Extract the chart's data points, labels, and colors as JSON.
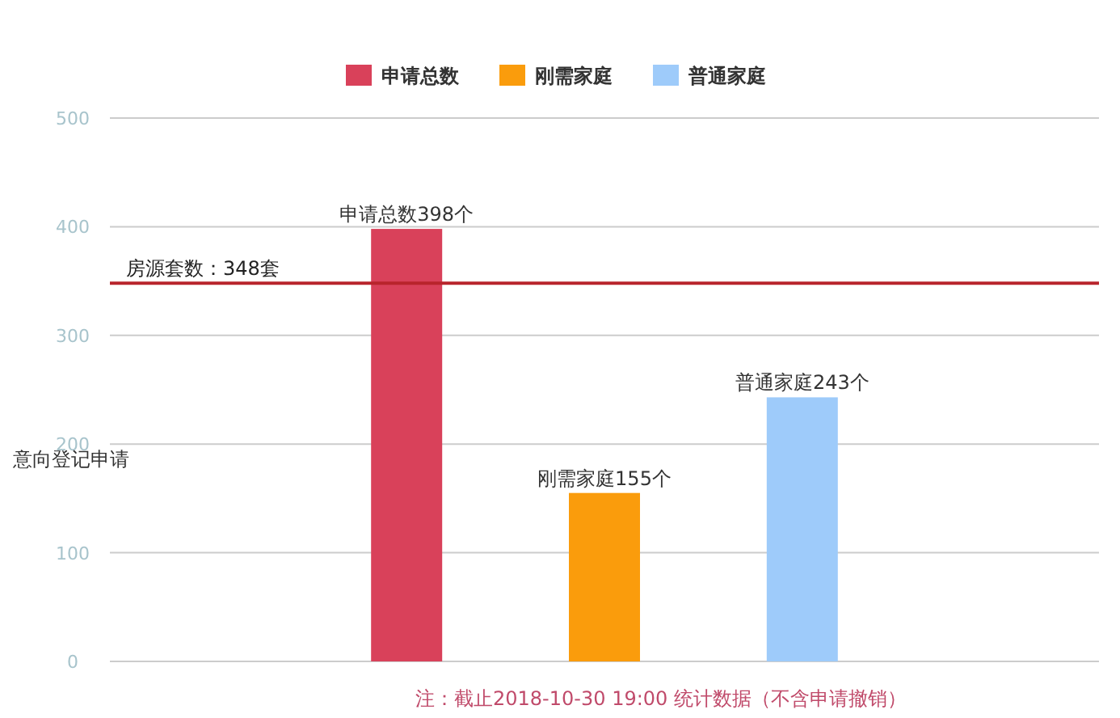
{
  "chart_data": {
    "type": "bar",
    "ylabel": "意向登记申请",
    "categories": [
      null,
      null,
      null,
      null,
      null
    ],
    "series": [
      {
        "name": "申请总数",
        "color": "#d9415a",
        "values": [
          null,
          398,
          null,
          null,
          null
        ],
        "value_labels": [
          null,
          "申请总数398个",
          null,
          null,
          null
        ]
      },
      {
        "name": "刚需家庭",
        "color": "#fa9c0c",
        "values": [
          null,
          null,
          155,
          null,
          null
        ],
        "value_labels": [
          null,
          null,
          "刚需家庭155个",
          null,
          null
        ]
      },
      {
        "name": "普通家庭",
        "color": "#9ecbfa",
        "values": [
          null,
          null,
          null,
          243,
          null
        ],
        "value_labels": [
          null,
          null,
          null,
          "普通家庭243个",
          null
        ]
      }
    ],
    "ylim": [
      0,
      500
    ],
    "yticks": [
      0,
      100,
      200,
      300,
      400,
      500
    ],
    "grid": "y",
    "legend": "top",
    "ref_lines": [
      {
        "axis": "y",
        "value": 348,
        "label": "房源套数：348套",
        "color": "#b8242c"
      }
    ],
    "annotations": [
      "注：截止2018-10-30 19:00 统计数据（不含申请撤销）"
    ]
  }
}
